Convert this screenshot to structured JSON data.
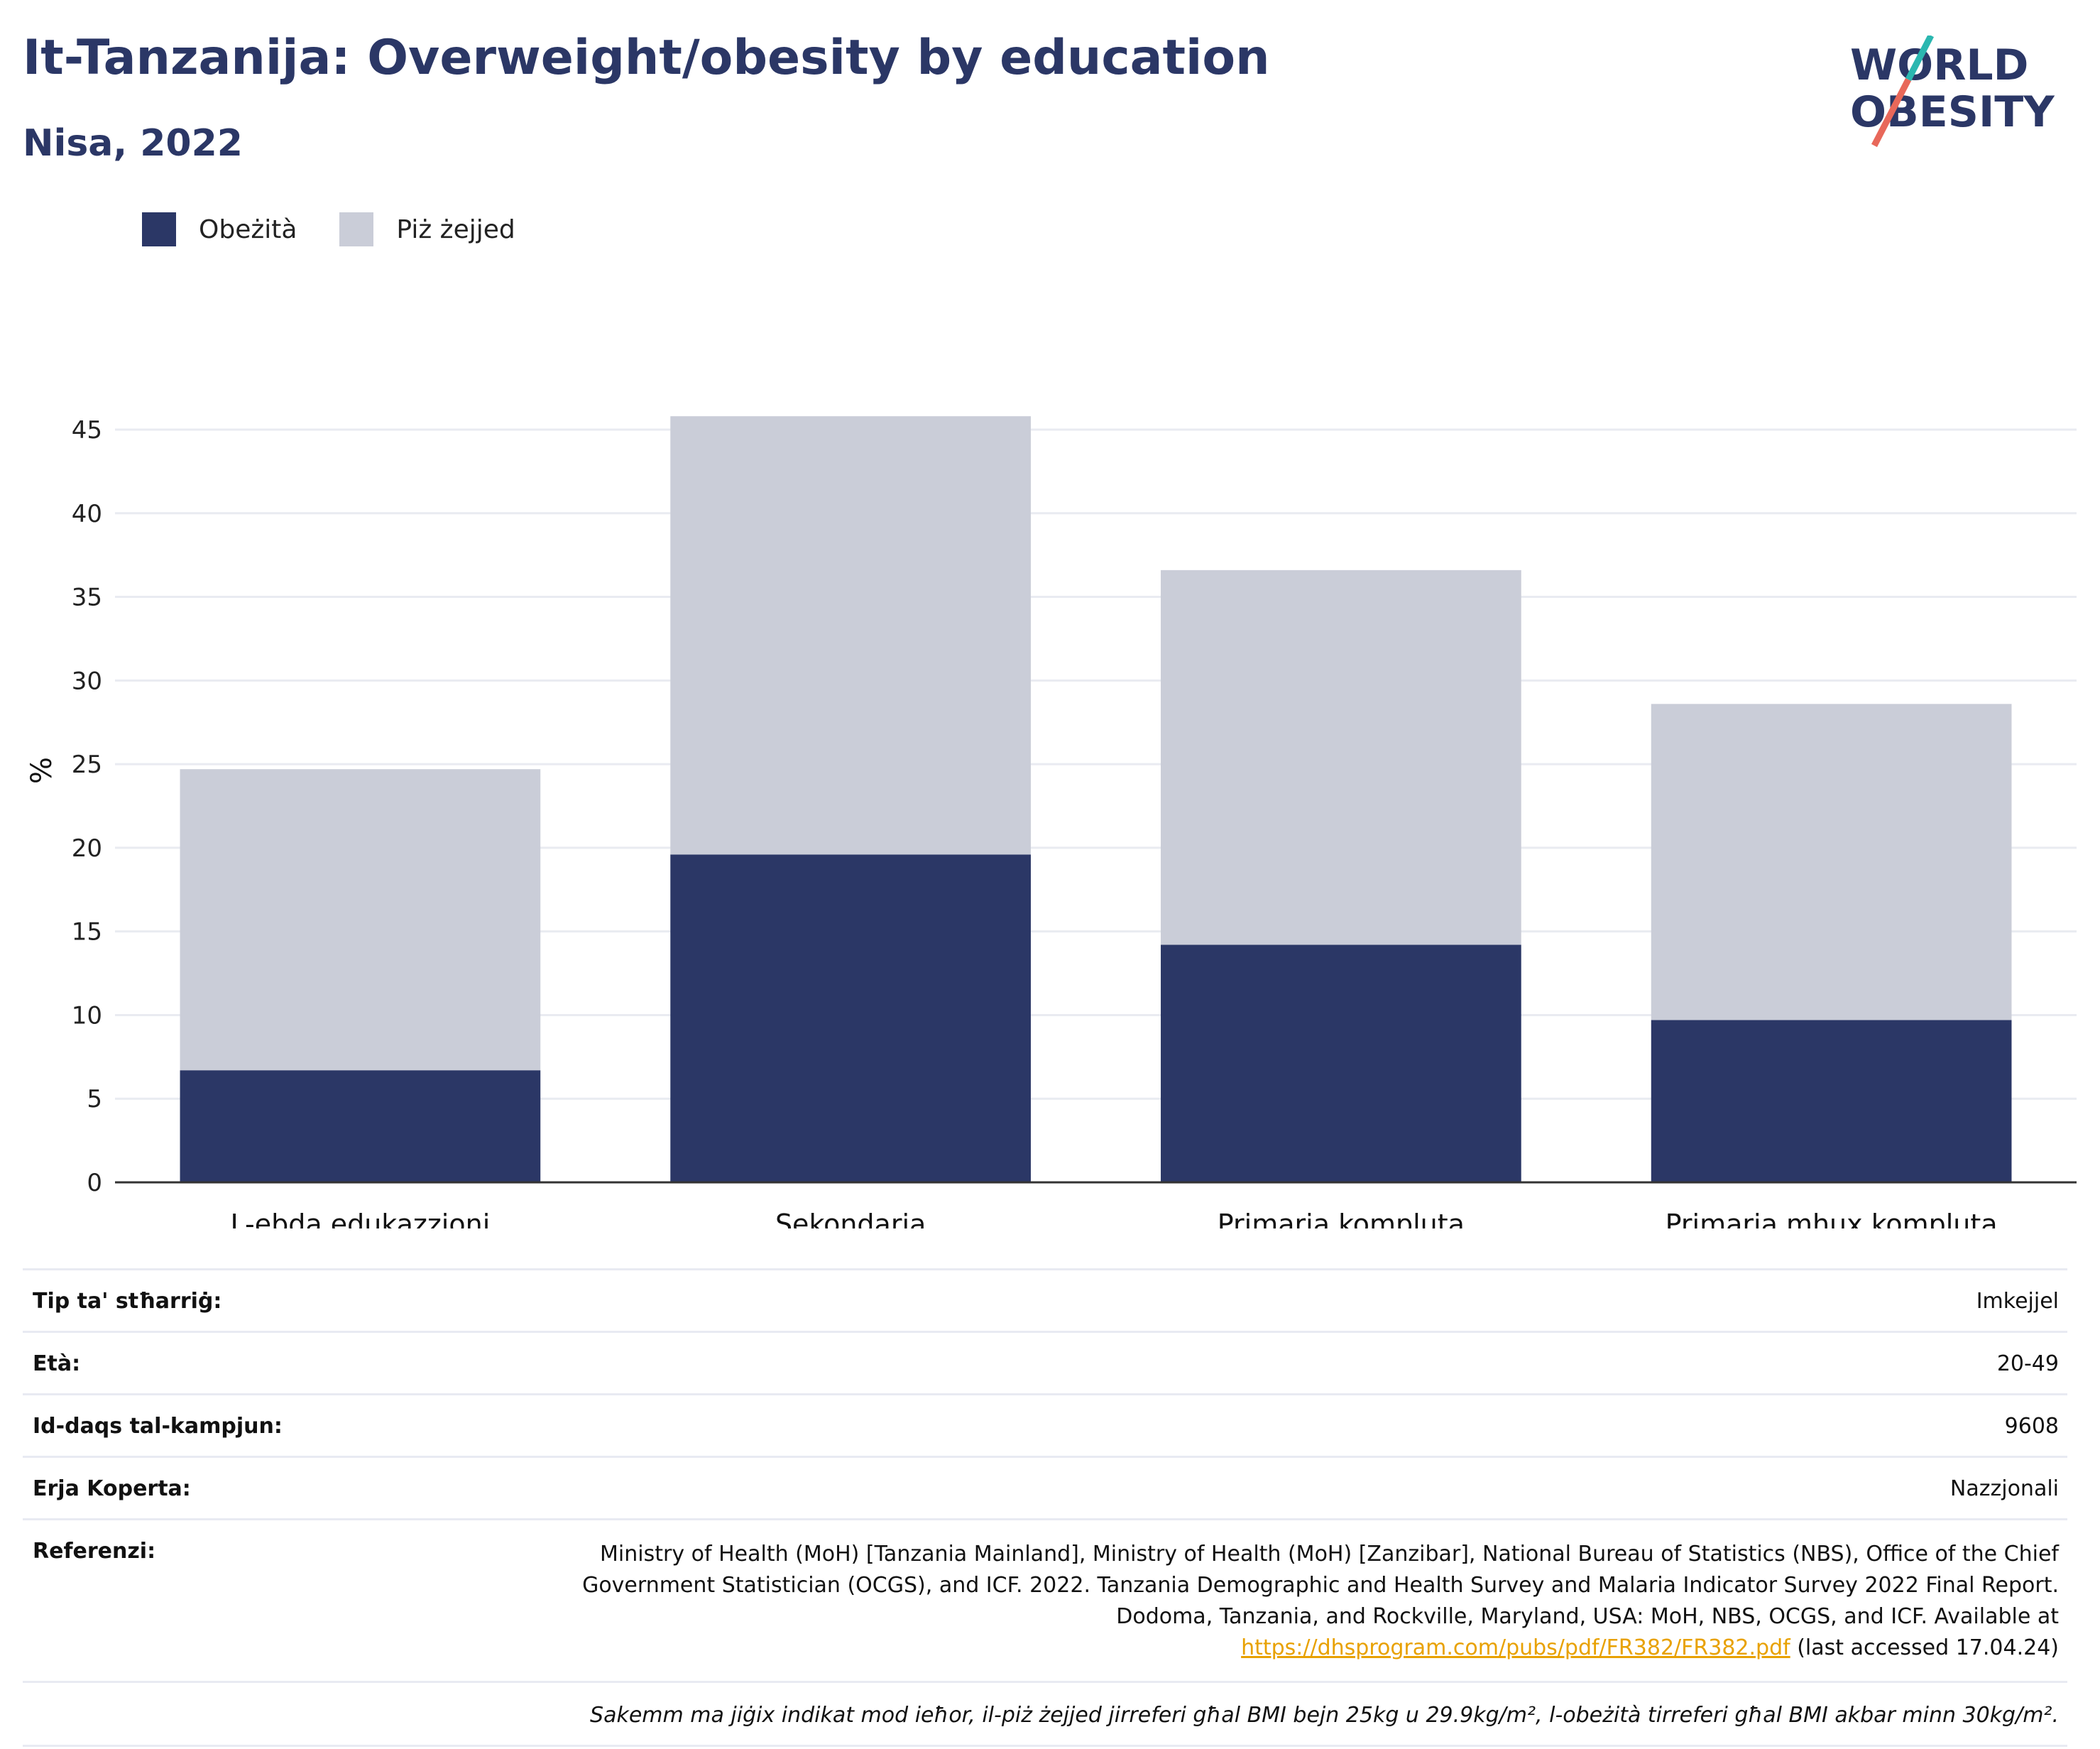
{
  "header": {
    "title": "It-Tanzanija: Overweight/obesity by education",
    "subtitle": "Nisa, 2022"
  },
  "logo": {
    "line1": "WORLD",
    "line2": "OBESITY"
  },
  "legend": [
    {
      "label": "Obeżità",
      "color": "#2b3766"
    },
    {
      "label": "Piż żejjed",
      "color": "#cacdd8"
    }
  ],
  "chart_data": {
    "type": "bar",
    "stacked": true,
    "categories": [
      "L-ebda edukazzjoni",
      "Sekondarja",
      "Primarja kompluta",
      "Primarja mhux kompluta"
    ],
    "series": [
      {
        "name": "Obeżità",
        "color": "#2b3766",
        "values": [
          6.7,
          19.6,
          14.2,
          9.7
        ]
      },
      {
        "name": "Piż żejjed",
        "color": "#cacdd8",
        "values": [
          18.0,
          26.2,
          22.4,
          18.9
        ]
      }
    ],
    "ylabel": "%",
    "ylim": [
      0,
      45
    ],
    "yticks": [
      0,
      5,
      10,
      15,
      20,
      25,
      30,
      35,
      40,
      45
    ],
    "grid": true,
    "legend_position": "top-left"
  },
  "info": {
    "rows": [
      {
        "key": "Tip ta' stħarriġ:",
        "value": "Imkejjel"
      },
      {
        "key": "Età:",
        "value": "20-49"
      },
      {
        "key": "Id-daqs tal-kampjun:",
        "value": "9608"
      },
      {
        "key": "Erja Koperta:",
        "value": "Nazzjonali"
      }
    ],
    "reference": {
      "key": "Referenzi:",
      "text": "Ministry of Health (MoH) [Tanzania Mainland], Ministry of Health (MoH) [Zanzibar], National Bureau of Statistics (NBS), Office of the Chief Government Statistician (OCGS), and ICF. 2022. Tanzania Demographic and Health Survey and Malaria Indicator Survey 2022 Final Report. Dodoma, Tanzania, and Rockville, Maryland, USA: MoH, NBS, OCGS, and ICF. Available at",
      "link": "https://dhsprogram.com/pubs/pdf/FR382/FR382.pdf",
      "suffix": " (last accessed 17.04.24)"
    },
    "note": "Sakemm ma jiġix indikat mod ieħor, il-piż żejjed jirreferi għal BMI bejn 25kg u 29.9kg/m², l-obeżità tirreferi għal BMI akbar minn 30kg/m²."
  }
}
